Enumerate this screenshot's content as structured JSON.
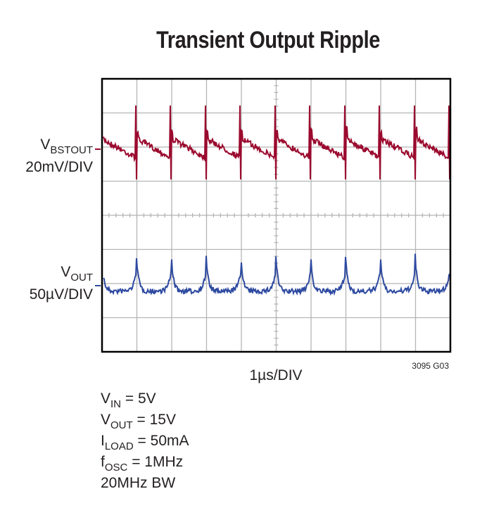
{
  "title": "Transient Output Ripple",
  "traces": [
    {
      "name": "V",
      "sub": "BSTOUT",
      "scale": "20mV/DIV",
      "color": "#9b0a2e"
    },
    {
      "name": "V",
      "sub": "OUT",
      "scale": "50µV/DIV",
      "color": "#2e4aa0"
    }
  ],
  "x_scale": "1µs/DIV",
  "figure_id": "3095 G03",
  "conditions": [
    {
      "main": "V",
      "sub": "IN",
      "rest": " = 5V"
    },
    {
      "main": "V",
      "sub": "OUT",
      "rest": " = 15V"
    },
    {
      "main": "I",
      "sub": "LOAD",
      "rest": " = 50mA"
    },
    {
      "main": "f",
      "sub": "OSC",
      "rest": " = 1MHz"
    },
    {
      "main": "20MHz BW"
    }
  ]
}
